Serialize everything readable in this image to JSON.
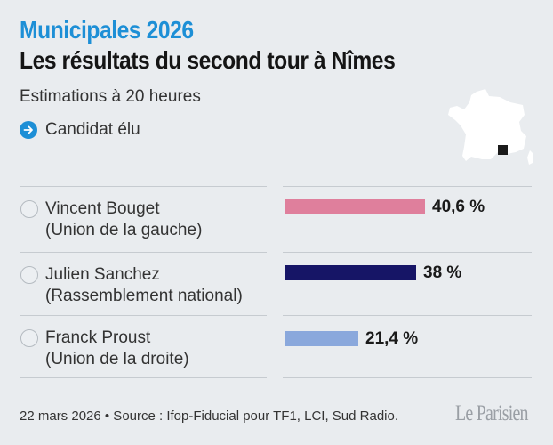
{
  "header": {
    "kicker": "Municipales 2026",
    "title": "Les résultats du second tour à Nîmes",
    "subtitle": "Estimations à 20 heures"
  },
  "legend": {
    "icon": "arrow-right-circle-icon",
    "label": "Candidat élu"
  },
  "map": {
    "icon": "france-map-icon",
    "marker": "nimes-location-marker"
  },
  "chart_data": {
    "type": "bar",
    "orientation": "horizontal",
    "categories": [
      "Vincent Bouget",
      "Julien Sanchez",
      "Franck Proust"
    ],
    "parties": [
      "(Union de la gauche)",
      "(Rassemblement national)",
      "(Union de la droite)"
    ],
    "values": [
      40.6,
      38,
      21.4
    ],
    "value_labels": [
      "40,6 %",
      "38 %",
      "21,4 %"
    ],
    "colors": [
      "#df7f9c",
      "#161566",
      "#8aa8dc"
    ],
    "unit": "%",
    "xlim": [
      0,
      100
    ],
    "grid": false,
    "legend": "none"
  },
  "footer": {
    "source": "22 mars 2026 • Source : Ifop-Fiducial pour TF1, LCI, Sud Radio.",
    "logo": "Le Parisien"
  }
}
